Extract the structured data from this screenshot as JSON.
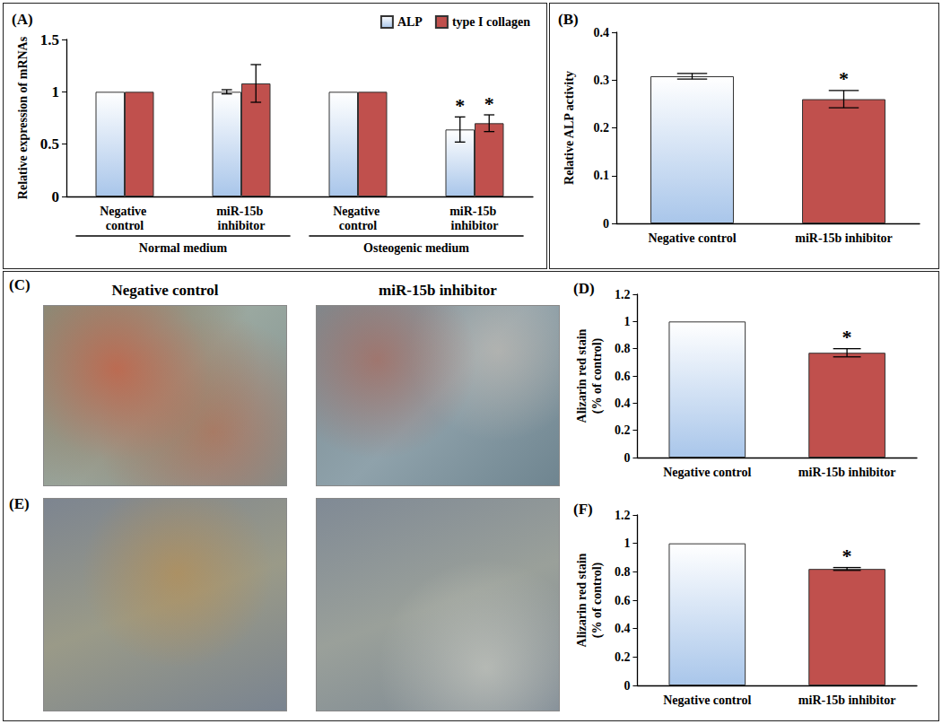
{
  "chart_data": [
    {
      "type": "bar",
      "title": "(A)",
      "categories": [
        "Negative control",
        "miR-15b inhibitor",
        "Negative control",
        "miR-15b inhibitor"
      ],
      "groups": [
        "Normal medium",
        "Osteogenic medium"
      ],
      "ylabel": "Relative expression of mRNAs",
      "ylim": [
        0,
        1.5
      ],
      "yticks": [
        0,
        0.5,
        1,
        1.5
      ],
      "grid": false,
      "legend": "upper right",
      "series": [
        {
          "name": "ALP",
          "color": "#a9c6ea",
          "values": [
            1,
            1,
            1,
            0.64
          ],
          "errors": [
            0,
            0.02,
            0,
            0.12
          ],
          "significance": [
            null,
            null,
            null,
            "*"
          ]
        },
        {
          "name": "type I collagen",
          "color": "#c0504d",
          "values": [
            1,
            1.08,
            1,
            0.7
          ],
          "errors": [
            0,
            0.18,
            0,
            0.08
          ],
          "significance": [
            null,
            null,
            null,
            "*"
          ]
        }
      ]
    },
    {
      "type": "bar",
      "title": "(B)",
      "categories": [
        "Negative control",
        "miR-15b inhibitor"
      ],
      "ylabel": "Relative ALP activity",
      "ylim": [
        0,
        0.4
      ],
      "yticks": [
        0,
        0.1,
        0.2,
        0.3,
        0.4
      ],
      "grid": false,
      "values": [
        0.308,
        0.26
      ],
      "errors": [
        0.006,
        0.018
      ],
      "significance": [
        null,
        "*"
      ],
      "colors": [
        "#a9c6ea",
        "#c0504d"
      ]
    },
    {
      "type": "bar",
      "title": "(D)",
      "categories": [
        "Negative control",
        "miR-15b inhibitor"
      ],
      "ylabel": "Alizarin red stain\n(% of control)",
      "ylim": [
        0,
        1.2
      ],
      "yticks": [
        0,
        0.2,
        0.4,
        0.6,
        0.8,
        1,
        1.2
      ],
      "grid": false,
      "values": [
        1,
        0.77
      ],
      "errors": [
        0,
        0.03
      ],
      "significance": [
        null,
        "*"
      ],
      "colors": [
        "#a9c6ea",
        "#c0504d"
      ]
    },
    {
      "type": "bar",
      "title": "(F)",
      "categories": [
        "Negative control",
        "miR-15b inhibitor"
      ],
      "ylabel": "Alizarin red stain\n(% of control)",
      "ylim": [
        0,
        1.2
      ],
      "yticks": [
        0,
        0.2,
        0.4,
        0.6,
        0.8,
        1,
        1.2
      ],
      "grid": false,
      "values": [
        1,
        0.82
      ],
      "errors": [
        0,
        0.01
      ],
      "significance": [
        null,
        "*"
      ],
      "colors": [
        "#a9c6ea",
        "#c0504d"
      ]
    }
  ],
  "images": [
    {
      "label": "(C)",
      "captions": [
        "Negative control",
        "miR-15b inhibitor"
      ]
    },
    {
      "label": "(E)"
    }
  ]
}
